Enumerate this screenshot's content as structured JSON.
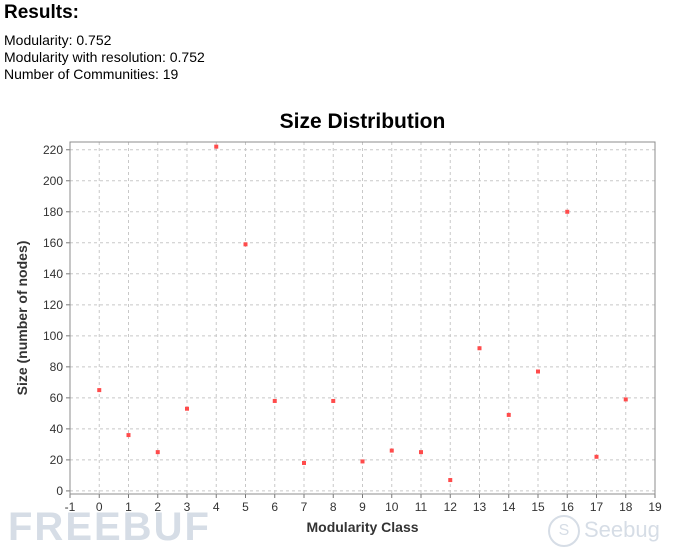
{
  "results": {
    "heading": "Results:",
    "modularity": "Modularity: 0.752",
    "modularity_resolution": "Modularity with resolution: 0.752",
    "communities": "Number of Communities: 19"
  },
  "watermarks": {
    "left": "FREEBUF",
    "right": "Seebug"
  },
  "chart_data": {
    "type": "scatter",
    "title": "Size Distribution",
    "xlabel": "Modularity Class",
    "ylabel": "Size (number of nodes)",
    "xlim": [
      -1,
      19
    ],
    "ylim": [
      -2,
      225
    ],
    "xticks": [
      -1,
      0,
      1,
      2,
      3,
      4,
      5,
      6,
      7,
      8,
      9,
      10,
      11,
      12,
      13,
      14,
      15,
      16,
      17,
      18,
      19
    ],
    "yticks": [
      0,
      20,
      40,
      60,
      80,
      100,
      120,
      140,
      160,
      180,
      200,
      220
    ],
    "grid": true,
    "point_color": "#ff4b4b",
    "x": [
      0,
      1,
      2,
      3,
      4,
      5,
      6,
      7,
      8,
      9,
      10,
      11,
      12,
      13,
      14,
      15,
      16,
      17,
      18
    ],
    "y": [
      65,
      36,
      25,
      53,
      222,
      159,
      58,
      18,
      58,
      19,
      26,
      25,
      7,
      92,
      49,
      77,
      180,
      22,
      59
    ]
  }
}
